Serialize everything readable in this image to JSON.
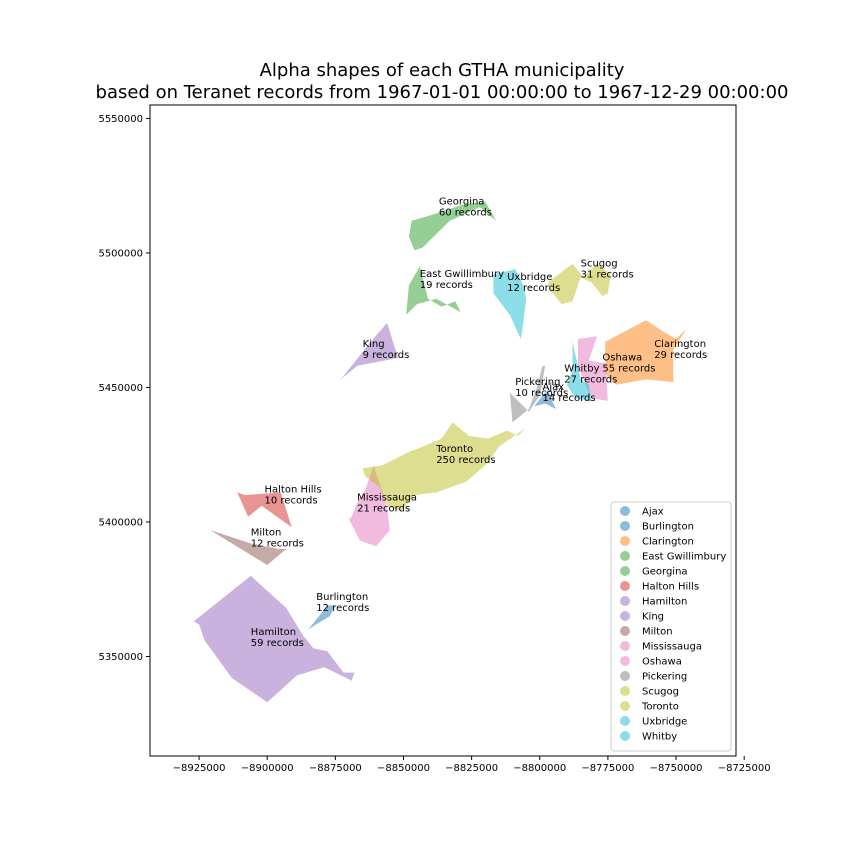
{
  "chart_data": {
    "type": "map",
    "title_line1": "Alpha shapes of each GTHA municipality",
    "title_line2": "based on Teranet records from 1967-01-01 00:00:00 to 1967-12-29 00:00:00",
    "xlim": [
      -8943000,
      -8728000
    ],
    "ylim": [
      5313000,
      5555000
    ],
    "x_ticks": [
      -8925000,
      -8900000,
      -8875000,
      -8850000,
      -8825000,
      -8800000,
      -8775000,
      -8750000,
      -8725000
    ],
    "x_tick_labels": [
      "−8925000",
      "−8900000",
      "−8875000",
      "−8850000",
      "−8825000",
      "−8800000",
      "−8775000",
      "−8750000",
      "−8725000"
    ],
    "y_ticks": [
      5350000,
      5400000,
      5450000,
      5500000,
      5550000
    ],
    "y_tick_labels": [
      "5350000",
      "5400000",
      "5450000",
      "5500000",
      "5550000"
    ],
    "legend_position": "lower-right",
    "regions": [
      {
        "name": "Ajax",
        "color": "#1f77b4",
        "label_line2": "14 records",
        "label_at": [
          -8799000,
          5449000
        ],
        "polygon": [
          [
            -8802000,
            5443000
          ],
          [
            -8799000,
            5447000
          ],
          [
            -8797000,
            5449000
          ],
          [
            -8796000,
            5446000
          ],
          [
            -8794000,
            5442000
          ],
          [
            -8798000,
            5444000
          ]
        ]
      },
      {
        "name": "Burlington",
        "color": "#1f77b4",
        "label_line2": "12 records",
        "label_at": [
          -8882000,
          5371000
        ],
        "polygon": [
          [
            -8885000,
            5360000
          ],
          [
            -8881000,
            5365000
          ],
          [
            -8878000,
            5369000
          ],
          [
            -8875000,
            5369000
          ],
          [
            -8877000,
            5365000
          ],
          [
            -8882000,
            5362000
          ]
        ]
      },
      {
        "name": "Clarington",
        "color": "#ff7f0e",
        "label_line2": "29 records",
        "label_at": [
          -8758000,
          5465000
        ],
        "polygon": [
          [
            -8776000,
            5467000
          ],
          [
            -8761000,
            5475000
          ],
          [
            -8755000,
            5471000
          ],
          [
            -8750000,
            5468000
          ],
          [
            -8746000,
            5472000
          ],
          [
            -8751000,
            5464000
          ],
          [
            -8751000,
            5452000
          ],
          [
            -8761000,
            5453000
          ],
          [
            -8772000,
            5451000
          ],
          [
            -8776000,
            5455000
          ]
        ]
      },
      {
        "name": "East Gwillimbury",
        "color": "#2ca02c",
        "label_line2": "19 records",
        "label_at": [
          -8844000,
          5491000
        ],
        "polygon": [
          [
            -8849000,
            5477000
          ],
          [
            -8848000,
            5488000
          ],
          [
            -8844000,
            5495000
          ],
          [
            -8841000,
            5483000
          ],
          [
            -8836000,
            5480000
          ],
          [
            -8831000,
            5482000
          ],
          [
            -8829000,
            5478000
          ],
          [
            -8838000,
            5483000
          ],
          [
            -8845000,
            5481000
          ]
        ]
      },
      {
        "name": "Georgina",
        "color": "#2ca02c",
        "label_line2": "60 records",
        "label_at": [
          -8837000,
          5518000
        ],
        "polygon": [
          [
            -8847000,
            5512000
          ],
          [
            -8840000,
            5514000
          ],
          [
            -8828000,
            5518000
          ],
          [
            -8820000,
            5519000
          ],
          [
            -8816000,
            5512000
          ],
          [
            -8822000,
            5517000
          ],
          [
            -8833000,
            5512000
          ],
          [
            -8843000,
            5502000
          ],
          [
            -8846000,
            5501000
          ],
          [
            -8848000,
            5506000
          ]
        ]
      },
      {
        "name": "Halton Hills",
        "color": "#d62728",
        "label_line2": "10 records",
        "label_at": [
          -8901000,
          5411000
        ],
        "polygon": [
          [
            -8911000,
            5411000
          ],
          [
            -8907000,
            5402000
          ],
          [
            -8902000,
            5406000
          ],
          [
            -8891000,
            5398000
          ],
          [
            -8895000,
            5411000
          ],
          [
            -8908000,
            5410000
          ]
        ]
      },
      {
        "name": "Hamilton",
        "color": "#9467bd",
        "label_line2": "59 records",
        "label_at": [
          -8906000,
          5358000
        ],
        "polygon": [
          [
            -8927000,
            5363000
          ],
          [
            -8906000,
            5380000
          ],
          [
            -8893000,
            5368000
          ],
          [
            -8887000,
            5358000
          ],
          [
            -8883000,
            5353000
          ],
          [
            -8878000,
            5352000
          ],
          [
            -8872000,
            5344000
          ],
          [
            -8868000,
            5344000
          ],
          [
            -8869000,
            5341000
          ],
          [
            -8879000,
            5346000
          ],
          [
            -8889000,
            5343000
          ],
          [
            -8900000,
            5333000
          ],
          [
            -8913000,
            5342000
          ],
          [
            -8923000,
            5356000
          ],
          [
            -8925000,
            5362000
          ]
        ]
      },
      {
        "name": "King",
        "color": "#9467bd",
        "label_line2": "9 records",
        "label_at": [
          -8865000,
          5465000
        ],
        "polygon": [
          [
            -8873000,
            5453000
          ],
          [
            -8862000,
            5467000
          ],
          [
            -8856000,
            5474000
          ],
          [
            -8852000,
            5461000
          ],
          [
            -8867000,
            5458000
          ]
        ]
      },
      {
        "name": "Milton",
        "color": "#8c564b",
        "label_line2": "12 records",
        "label_at": [
          -8906000,
          5395000
        ],
        "polygon": [
          [
            -8921000,
            5397000
          ],
          [
            -8906000,
            5392000
          ],
          [
            -8896000,
            5390000
          ],
          [
            -8893000,
            5390000
          ],
          [
            -8900000,
            5384000
          ]
        ]
      },
      {
        "name": "Mississauga",
        "color": "#e377c2",
        "label_line2": "21 records",
        "label_at": [
          -8867000,
          5408000
        ],
        "polygon": [
          [
            -8869000,
            5402000
          ],
          [
            -8867000,
            5407000
          ],
          [
            -8864000,
            5412000
          ],
          [
            -8861000,
            5421000
          ],
          [
            -8858000,
            5412000
          ],
          [
            -8856000,
            5405000
          ],
          [
            -8855000,
            5397000
          ],
          [
            -8860000,
            5391000
          ],
          [
            -8866000,
            5393000
          ],
          [
            -8870000,
            5401000
          ]
        ]
      },
      {
        "name": "Oshawa",
        "color": "#e377c2",
        "label_line2": "55 records",
        "label_at": [
          -8777000,
          5460000
        ],
        "polygon": [
          [
            -8786000,
            5468000
          ],
          [
            -8779000,
            5469000
          ],
          [
            -8782000,
            5460000
          ],
          [
            -8776000,
            5459000
          ],
          [
            -8775000,
            5445000
          ],
          [
            -8781000,
            5446000
          ],
          [
            -8784000,
            5453000
          ],
          [
            -8786000,
            5458000
          ]
        ]
      },
      {
        "name": "Pickering",
        "color": "#7f7f7f",
        "label_line2": "10 records",
        "label_at": [
          -8809000,
          5451000
        ],
        "polygon": [
          [
            -8810000,
            5437000
          ],
          [
            -8804000,
            5442000
          ],
          [
            -8801000,
            5450000
          ],
          [
            -8799000,
            5458000
          ],
          [
            -8798000,
            5458000
          ],
          [
            -8800000,
            5447000
          ],
          [
            -8804000,
            5441000
          ],
          [
            -8808000,
            5445000
          ],
          [
            -8811000,
            5448000
          ]
        ]
      },
      {
        "name": "Scugog",
        "color": "#bcbd22",
        "label_line2": "31 records",
        "label_at": [
          -8785000,
          5495000
        ],
        "polygon": [
          [
            -8797000,
            5489000
          ],
          [
            -8788000,
            5496000
          ],
          [
            -8784000,
            5491000
          ],
          [
            -8779000,
            5496000
          ],
          [
            -8774000,
            5492000
          ],
          [
            -8775000,
            5485000
          ],
          [
            -8777000,
            5484000
          ],
          [
            -8781000,
            5489000
          ],
          [
            -8785000,
            5491000
          ],
          [
            -8788000,
            5482000
          ],
          [
            -8792000,
            5481000
          ],
          [
            -8796000,
            5486000
          ]
        ]
      },
      {
        "name": "Toronto",
        "color": "#bcbd22",
        "label_line2": "250 records",
        "label_at": [
          -8838000,
          5426000
        ],
        "polygon": [
          [
            -8865000,
            5420000
          ],
          [
            -8858000,
            5421000
          ],
          [
            -8848000,
            5426000
          ],
          [
            -8843000,
            5428000
          ],
          [
            -8836000,
            5431000
          ],
          [
            -8832000,
            5437000
          ],
          [
            -8826000,
            5432000
          ],
          [
            -8819000,
            5431000
          ],
          [
            -8812000,
            5434000
          ],
          [
            -8808000,
            5432000
          ],
          [
            -8805000,
            5435000
          ],
          [
            -8815000,
            5428000
          ],
          [
            -8819000,
            5422000
          ],
          [
            -8827000,
            5415000
          ],
          [
            -8838000,
            5411000
          ],
          [
            -8846000,
            5410000
          ],
          [
            -8851000,
            5404000
          ],
          [
            -8856000,
            5406000
          ],
          [
            -8859000,
            5413000
          ],
          [
            -8864000,
            5417000
          ]
        ]
      },
      {
        "name": "Uxbridge",
        "color": "#17becf",
        "label_line2": "12 records",
        "label_at": [
          -8812000,
          5490000
        ],
        "polygon": [
          [
            -8817000,
            5492000
          ],
          [
            -8809000,
            5494000
          ],
          [
            -8806000,
            5488000
          ],
          [
            -8805000,
            5483000
          ],
          [
            -8806000,
            5474000
          ],
          [
            -8807000,
            5468000
          ],
          [
            -8811000,
            5477000
          ],
          [
            -8817000,
            5485000
          ]
        ]
      },
      {
        "name": "Whitby",
        "color": "#17becf",
        "label_line2": "27 records",
        "label_at": [
          -8791000,
          5456000
        ],
        "polygon": [
          [
            -8788000,
            5467000
          ],
          [
            -8788000,
            5456000
          ],
          [
            -8790000,
            5451000
          ],
          [
            -8787000,
            5446000
          ],
          [
            -8781000,
            5445000
          ],
          [
            -8782000,
            5451000
          ],
          [
            -8785000,
            5453000
          ],
          [
            -8786000,
            5458000
          ]
        ]
      }
    ]
  }
}
